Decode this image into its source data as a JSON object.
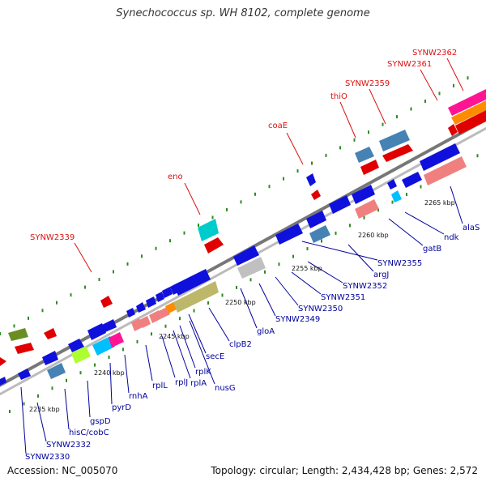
{
  "title": "Synechococcus sp. WH 8102, complete genome",
  "footer": {
    "accession": "Accession: NC_005070",
    "summary": "Topology: circular; Length: 2,434,428 bp; Genes: 2,572"
  },
  "colors": {
    "backbone": "#888888",
    "dots": "#2e8b22",
    "gene_blue": "#1010dd",
    "label_red": "#dd1111",
    "label_blue": "#00009c"
  },
  "ticks": [
    {
      "label": "2235 kbp"
    },
    {
      "label": "2240 kbp"
    },
    {
      "label": "2245 kbp"
    },
    {
      "label": "2250 kbp"
    },
    {
      "label": "2255 kbp"
    },
    {
      "label": "2260 kbp"
    },
    {
      "label": "2265 kbp"
    }
  ],
  "labels_top": [
    {
      "name": "SYNW2339"
    },
    {
      "name": "eno"
    },
    {
      "name": "coaE"
    },
    {
      "name": "thiO"
    },
    {
      "name": "SYNW2359"
    },
    {
      "name": "SYNW2361"
    },
    {
      "name": "SYNW2362"
    }
  ],
  "labels_bottom": [
    {
      "name": "SYNW2330"
    },
    {
      "name": "SYNW2332"
    },
    {
      "name": "hisC/cobC"
    },
    {
      "name": "gspD"
    },
    {
      "name": "pyrD"
    },
    {
      "name": "rnhA"
    },
    {
      "name": "rplL"
    },
    {
      "name": "rplJ"
    },
    {
      "name": "rplA"
    },
    {
      "name": "rplK"
    },
    {
      "name": "nusG"
    },
    {
      "name": "secE"
    },
    {
      "name": "clpB2"
    },
    {
      "name": "gloA"
    },
    {
      "name": "SYNW2349"
    },
    {
      "name": "SYNW2350"
    },
    {
      "name": "SYNW2351"
    },
    {
      "name": "SYNW2352"
    },
    {
      "name": "argJ"
    },
    {
      "name": "SYNW2355"
    },
    {
      "name": "gatB"
    },
    {
      "name": "ndk"
    },
    {
      "name": "alaS"
    }
  ]
}
